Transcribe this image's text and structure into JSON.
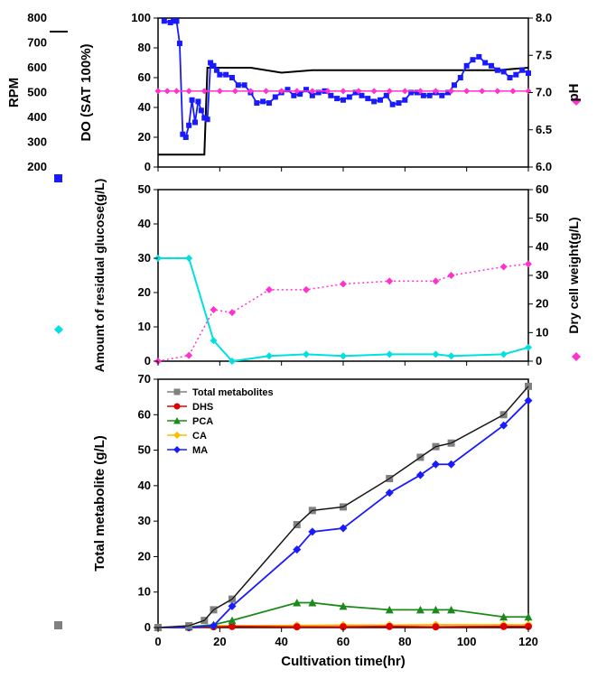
{
  "xlabel": "Cultivation time(hr)",
  "x_ticks": [
    0,
    20,
    40,
    60,
    80,
    100,
    120
  ],
  "panel1": {
    "y_left1_label": "RPM",
    "y_left1_ticks": [
      200,
      300,
      400,
      500,
      600,
      700,
      800
    ],
    "y_left1_range": [
      200,
      800
    ],
    "y_left2_label": "DO (SAT 100%)",
    "y_left2_ticks": [
      0,
      20,
      40,
      60,
      80,
      100
    ],
    "y_left2_range": [
      0,
      100
    ],
    "y_right_label": "pH",
    "y_right_ticks": [
      6.0,
      6.5,
      7.0,
      7.5,
      8.0
    ],
    "y_right_range": [
      6.0,
      8.0
    ],
    "legend_rpm": {
      "label": "RPM",
      "color": "#000000",
      "marker": "line"
    },
    "legend_do": {
      "label": "DO",
      "color": "#1a1aff",
      "marker": "square"
    },
    "legend_ph": {
      "label": "pH",
      "color": "#ff33cc",
      "marker": "diamond"
    },
    "rpm_data": [
      [
        0,
        250
      ],
      [
        5,
        250
      ],
      [
        10,
        250
      ],
      [
        15,
        250
      ],
      [
        16,
        600
      ],
      [
        20,
        600
      ],
      [
        30,
        600
      ],
      [
        40,
        580
      ],
      [
        50,
        590
      ],
      [
        60,
        590
      ],
      [
        70,
        590
      ],
      [
        80,
        590
      ],
      [
        90,
        590
      ],
      [
        100,
        590
      ],
      [
        110,
        590
      ],
      [
        120,
        600
      ]
    ],
    "ph_data": [
      [
        0,
        7.02
      ],
      [
        3,
        7.02
      ],
      [
        6,
        7.02
      ],
      [
        10,
        7.02
      ],
      [
        15,
        7.02
      ],
      [
        20,
        7.02
      ],
      [
        25,
        7.02
      ],
      [
        30,
        7.02
      ],
      [
        35,
        7.02
      ],
      [
        40,
        7.02
      ],
      [
        45,
        7.02
      ],
      [
        50,
        7.02
      ],
      [
        55,
        7.02
      ],
      [
        60,
        7.02
      ],
      [
        65,
        7.02
      ],
      [
        70,
        7.02
      ],
      [
        75,
        7.02
      ],
      [
        80,
        7.02
      ],
      [
        85,
        7.02
      ],
      [
        90,
        7.02
      ],
      [
        95,
        7.02
      ],
      [
        100,
        7.02
      ],
      [
        105,
        7.02
      ],
      [
        110,
        7.02
      ],
      [
        115,
        7.02
      ],
      [
        120,
        7.02
      ]
    ],
    "do_data": [
      [
        2,
        98
      ],
      [
        4,
        97
      ],
      [
        5,
        98
      ],
      [
        6,
        98
      ],
      [
        7,
        83
      ],
      [
        8,
        22
      ],
      [
        9,
        20
      ],
      [
        10,
        28
      ],
      [
        11,
        45
      ],
      [
        12,
        30
      ],
      [
        13,
        44
      ],
      [
        14,
        38
      ],
      [
        15,
        33
      ],
      [
        16,
        32
      ],
      [
        17,
        70
      ],
      [
        18,
        68
      ],
      [
        19,
        65
      ],
      [
        20,
        62
      ],
      [
        22,
        62
      ],
      [
        24,
        60
      ],
      [
        26,
        55
      ],
      [
        28,
        55
      ],
      [
        30,
        50
      ],
      [
        32,
        43
      ],
      [
        34,
        44
      ],
      [
        36,
        43
      ],
      [
        38,
        47
      ],
      [
        40,
        50
      ],
      [
        42,
        52
      ],
      [
        44,
        48
      ],
      [
        46,
        49
      ],
      [
        48,
        52
      ],
      [
        50,
        48
      ],
      [
        52,
        50
      ],
      [
        54,
        51
      ],
      [
        56,
        48
      ],
      [
        58,
        46
      ],
      [
        60,
        45
      ],
      [
        62,
        47
      ],
      [
        64,
        50
      ],
      [
        66,
        48
      ],
      [
        68,
        46
      ],
      [
        70,
        44
      ],
      [
        72,
        45
      ],
      [
        74,
        48
      ],
      [
        76,
        42
      ],
      [
        78,
        43
      ],
      [
        80,
        45
      ],
      [
        82,
        50
      ],
      [
        84,
        50
      ],
      [
        86,
        48
      ],
      [
        88,
        48
      ],
      [
        90,
        50
      ],
      [
        92,
        48
      ],
      [
        94,
        50
      ],
      [
        96,
        55
      ],
      [
        98,
        60
      ],
      [
        100,
        68
      ],
      [
        102,
        72
      ],
      [
        104,
        74
      ],
      [
        106,
        70
      ],
      [
        108,
        68
      ],
      [
        110,
        65
      ],
      [
        112,
        64
      ],
      [
        114,
        60
      ],
      [
        116,
        62
      ],
      [
        118,
        65
      ],
      [
        120,
        63
      ]
    ]
  },
  "panel2": {
    "y_left_label": "Amount of residual glucose(g/L)",
    "y_left_ticks": [
      0,
      10,
      20,
      30,
      40,
      50
    ],
    "y_left_range": [
      0,
      50
    ],
    "y_right_label": "Dry cell weight(g/L)",
    "y_right_ticks": [
      0,
      10,
      20,
      30,
      40,
      50,
      60
    ],
    "y_right_range": [
      0,
      60
    ],
    "legend_glucose": {
      "color": "#00e0e0",
      "marker": "diamond"
    },
    "legend_dcw": {
      "color": "#ff33cc",
      "marker": "diamond"
    },
    "glucose_data": [
      [
        0,
        30
      ],
      [
        10,
        30
      ],
      [
        18,
        6
      ],
      [
        24,
        0
      ],
      [
        36,
        1.5
      ],
      [
        48,
        2
      ],
      [
        60,
        1.5
      ],
      [
        75,
        2
      ],
      [
        90,
        2
      ],
      [
        95,
        1.5
      ],
      [
        112,
        2
      ],
      [
        120,
        4
      ]
    ],
    "dcw_data": [
      [
        0,
        0
      ],
      [
        10,
        2
      ],
      [
        18,
        18
      ],
      [
        24,
        17
      ],
      [
        36,
        25
      ],
      [
        48,
        25
      ],
      [
        60,
        27
      ],
      [
        75,
        28
      ],
      [
        90,
        28
      ],
      [
        95,
        30
      ],
      [
        112,
        33
      ],
      [
        120,
        34
      ]
    ]
  },
  "panel3": {
    "y_left_label": "Total metabolite (g/L)",
    "y_left_ticks": [
      0,
      10,
      20,
      30,
      40,
      50,
      60,
      70
    ],
    "y_left_range": [
      0,
      70
    ],
    "legend": [
      {
        "label": "Total metabolites",
        "color": "#808080",
        "marker": "square"
      },
      {
        "label": "DHS",
        "color": "#e00000",
        "marker": "circle"
      },
      {
        "label": "PCA",
        "color": "#1a8a1a",
        "marker": "triangle"
      },
      {
        "label": "CA",
        "color": "#ffbb00",
        "marker": "diamond"
      },
      {
        "label": "MA",
        "color": "#1a1aff",
        "marker": "diamond"
      }
    ],
    "total_data": [
      [
        0,
        0
      ],
      [
        10,
        0.5
      ],
      [
        15,
        2
      ],
      [
        18,
        5
      ],
      [
        24,
        8
      ],
      [
        45,
        29
      ],
      [
        50,
        33
      ],
      [
        60,
        34
      ],
      [
        75,
        42
      ],
      [
        85,
        48
      ],
      [
        90,
        51
      ],
      [
        95,
        52
      ],
      [
        112,
        60
      ],
      [
        120,
        68
      ]
    ],
    "dhs_data": [
      [
        0,
        0
      ],
      [
        10,
        0
      ],
      [
        18,
        0.2
      ],
      [
        24,
        0.3
      ],
      [
        45,
        0.2
      ],
      [
        60,
        0.2
      ],
      [
        75,
        0.3
      ],
      [
        90,
        0.2
      ],
      [
        112,
        0.3
      ],
      [
        120,
        0.3
      ]
    ],
    "pca_data": [
      [
        0,
        0
      ],
      [
        10,
        0.2
      ],
      [
        18,
        0.8
      ],
      [
        24,
        2
      ],
      [
        45,
        7
      ],
      [
        50,
        7
      ],
      [
        60,
        6
      ],
      [
        75,
        5
      ],
      [
        85,
        5
      ],
      [
        90,
        5
      ],
      [
        95,
        5
      ],
      [
        112,
        3
      ],
      [
        120,
        3
      ]
    ],
    "ca_data": [
      [
        0,
        0
      ],
      [
        10,
        0.2
      ],
      [
        18,
        0.5
      ],
      [
        24,
        0.5
      ],
      [
        45,
        0.6
      ],
      [
        60,
        0.7
      ],
      [
        75,
        0.7
      ],
      [
        90,
        0.8
      ],
      [
        112,
        0.8
      ],
      [
        120,
        0.8
      ]
    ],
    "ma_data": [
      [
        0,
        0
      ],
      [
        10,
        0
      ],
      [
        18,
        0.5
      ],
      [
        24,
        6
      ],
      [
        45,
        22
      ],
      [
        50,
        27
      ],
      [
        60,
        28
      ],
      [
        75,
        38
      ],
      [
        85,
        43
      ],
      [
        90,
        46
      ],
      [
        95,
        46
      ],
      [
        112,
        57
      ],
      [
        120,
        64
      ]
    ]
  },
  "colors": {
    "black": "#000000",
    "blue": "#1a1aff",
    "pink": "#ff33cc",
    "cyan": "#00e0e0",
    "gray": "#808080",
    "red": "#e00000",
    "green": "#1a8a1a",
    "orange": "#ffbb00"
  },
  "font": {
    "axis_label": 14,
    "tick_label": 12,
    "legend": 11
  }
}
